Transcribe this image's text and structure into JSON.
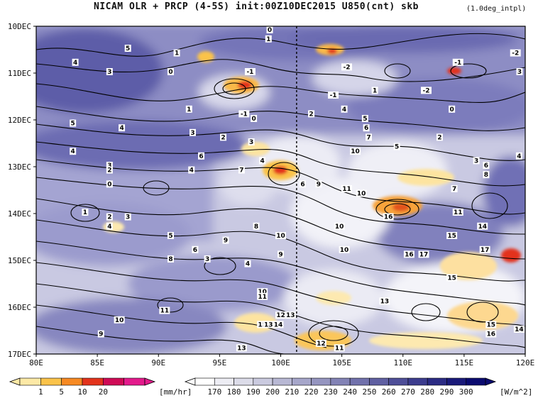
{
  "title": {
    "main": "NICAM  OLR + PRCP (4-5S) init:00Z10DEC2015 U850(cnt) skb",
    "note": "(1.0deg_intpl)"
  },
  "chart_data": {
    "type": "heatmap",
    "title": "NICAM  OLR + PRCP (4-5S) init:00Z10DEC2015 U850(cnt) skb",
    "x_ticks": [
      "80E",
      "85E",
      "90E",
      "95E",
      "100E",
      "105E",
      "110E",
      "115E",
      "120E"
    ],
    "x_range": [
      80,
      120
    ],
    "y_ticks": [
      "10DEC",
      "11DEC",
      "12DEC",
      "13DEC",
      "14DEC",
      "15DEC",
      "16DEC",
      "17DEC"
    ],
    "y_range_days": [
      10,
      17
    ],
    "reference_line_lon": 101.3,
    "contour_variable": "U850",
    "contour_labels": [
      {
        "text": "0",
        "lon": 99.1,
        "day": 10.1
      },
      {
        "text": "1",
        "lon": 99.0,
        "day": 10.3
      },
      {
        "text": "5",
        "lon": 87.5,
        "day": 10.5
      },
      {
        "text": "4",
        "lon": 83.2,
        "day": 10.8
      },
      {
        "text": "3",
        "lon": 86.0,
        "day": 11.0
      },
      {
        "text": "1",
        "lon": 91.5,
        "day": 10.6
      },
      {
        "text": "0",
        "lon": 91.0,
        "day": 11.0
      },
      {
        "text": "-1",
        "lon": 97.5,
        "day": 11.0
      },
      {
        "text": "-2",
        "lon": 105.4,
        "day": 10.9
      },
      {
        "text": "-1",
        "lon": 114.5,
        "day": 10.8
      },
      {
        "text": "-2",
        "lon": 119.2,
        "day": 10.6
      },
      {
        "text": "3",
        "lon": 120.0,
        "day": 11.0
      },
      {
        "text": "-2",
        "lon": 111.9,
        "day": 11.4
      },
      {
        "text": "-1",
        "lon": 104.3,
        "day": 11.5
      },
      {
        "text": "1",
        "lon": 107.7,
        "day": 11.4
      },
      {
        "text": "5",
        "lon": 83.0,
        "day": 12.1
      },
      {
        "text": "4",
        "lon": 87.0,
        "day": 12.2
      },
      {
        "text": "1",
        "lon": 92.5,
        "day": 11.8
      },
      {
        "text": "-1",
        "lon": 97.0,
        "day": 11.9
      },
      {
        "text": "0",
        "lon": 97.8,
        "day": 12.0
      },
      {
        "text": "2",
        "lon": 102.5,
        "day": 11.9
      },
      {
        "text": "4",
        "lon": 105.2,
        "day": 11.8
      },
      {
        "text": "5",
        "lon": 106.9,
        "day": 12.0
      },
      {
        "text": "6",
        "lon": 107.0,
        "day": 12.2
      },
      {
        "text": "0",
        "lon": 114.0,
        "day": 11.8
      },
      {
        "text": "2",
        "lon": 113.0,
        "day": 12.4
      },
      {
        "text": "3",
        "lon": 92.8,
        "day": 12.3
      },
      {
        "text": "2",
        "lon": 95.3,
        "day": 12.4
      },
      {
        "text": "3",
        "lon": 97.6,
        "day": 12.5
      },
      {
        "text": "7",
        "lon": 107.2,
        "day": 12.4
      },
      {
        "text": "5",
        "lon": 109.5,
        "day": 12.6
      },
      {
        "text": "4",
        "lon": 83.0,
        "day": 12.7
      },
      {
        "text": "6",
        "lon": 93.5,
        "day": 12.8
      },
      {
        "text": "4",
        "lon": 98.5,
        "day": 12.9
      },
      {
        "text": "10",
        "lon": 106.1,
        "day": 12.7
      },
      {
        "text": "3",
        "lon": 116.0,
        "day": 12.9
      },
      {
        "text": "4",
        "lon": 119.5,
        "day": 12.8
      },
      {
        "text": "3",
        "lon": 86.0,
        "day": 13.0
      },
      {
        "text": "2",
        "lon": 86.0,
        "day": 13.1
      },
      {
        "text": "0",
        "lon": 86.0,
        "day": 13.4
      },
      {
        "text": "4",
        "lon": 92.7,
        "day": 13.1
      },
      {
        "text": "7",
        "lon": 96.8,
        "day": 13.1
      },
      {
        "text": "6",
        "lon": 101.8,
        "day": 13.4
      },
      {
        "text": "9",
        "lon": 103.1,
        "day": 13.4
      },
      {
        "text": "11",
        "lon": 105.4,
        "day": 13.5
      },
      {
        "text": "10",
        "lon": 106.6,
        "day": 13.6
      },
      {
        "text": "6",
        "lon": 116.8,
        "day": 13.0
      },
      {
        "text": "8",
        "lon": 116.8,
        "day": 13.2
      },
      {
        "text": "7",
        "lon": 114.2,
        "day": 13.5
      },
      {
        "text": "1",
        "lon": 84.0,
        "day": 14.0
      },
      {
        "text": "2",
        "lon": 86.0,
        "day": 14.1
      },
      {
        "text": "3",
        "lon": 87.5,
        "day": 14.1
      },
      {
        "text": "4",
        "lon": 86.0,
        "day": 14.3
      },
      {
        "text": "16",
        "lon": 108.8,
        "day": 14.1
      },
      {
        "text": "11",
        "lon": 114.5,
        "day": 14.0
      },
      {
        "text": "8",
        "lon": 98.0,
        "day": 14.3
      },
      {
        "text": "5",
        "lon": 91.0,
        "day": 14.5
      },
      {
        "text": "10",
        "lon": 100.0,
        "day": 14.5
      },
      {
        "text": "10",
        "lon": 104.8,
        "day": 14.3
      },
      {
        "text": "15",
        "lon": 114.0,
        "day": 14.5
      },
      {
        "text": "14",
        "lon": 116.5,
        "day": 14.3
      },
      {
        "text": "9",
        "lon": 95.5,
        "day": 14.6
      },
      {
        "text": "6",
        "lon": 93.0,
        "day": 14.8
      },
      {
        "text": "9",
        "lon": 100.0,
        "day": 14.9
      },
      {
        "text": "10",
        "lon": 105.2,
        "day": 14.8
      },
      {
        "text": "16",
        "lon": 110.5,
        "day": 14.9
      },
      {
        "text": "17",
        "lon": 111.7,
        "day": 14.9
      },
      {
        "text": "17",
        "lon": 116.7,
        "day": 14.8
      },
      {
        "text": "8",
        "lon": 91.0,
        "day": 15.0
      },
      {
        "text": "3",
        "lon": 94.0,
        "day": 15.0
      },
      {
        "text": "4",
        "lon": 97.3,
        "day": 15.1
      },
      {
        "text": "15",
        "lon": 114.0,
        "day": 15.4
      },
      {
        "text": "10",
        "lon": 98.5,
        "day": 15.7
      },
      {
        "text": "11",
        "lon": 98.5,
        "day": 15.8
      },
      {
        "text": "13",
        "lon": 108.5,
        "day": 15.9
      },
      {
        "text": "11",
        "lon": 90.5,
        "day": 16.1
      },
      {
        "text": "12",
        "lon": 100.0,
        "day": 16.2
      },
      {
        "text": "13",
        "lon": 100.8,
        "day": 16.2
      },
      {
        "text": "15",
        "lon": 98.5,
        "day": 16.4
      },
      {
        "text": "13",
        "lon": 99.0,
        "day": 16.4
      },
      {
        "text": "14",
        "lon": 99.8,
        "day": 16.4
      },
      {
        "text": "10",
        "lon": 86.8,
        "day": 16.3
      },
      {
        "text": "9",
        "lon": 85.3,
        "day": 16.6
      },
      {
        "text": "15",
        "lon": 117.2,
        "day": 16.4
      },
      {
        "text": "16",
        "lon": 117.2,
        "day": 16.6
      },
      {
        "text": "14",
        "lon": 119.5,
        "day": 16.5
      },
      {
        "text": "12",
        "lon": 103.3,
        "day": 16.8
      },
      {
        "text": "13",
        "lon": 96.8,
        "day": 16.9
      },
      {
        "text": "11",
        "lon": 104.8,
        "day": 16.9
      }
    ],
    "colorbars": [
      {
        "name": "PRCP",
        "unit": "[mm/hr]",
        "tick_labels": [
          "1",
          "5",
          "10",
          "20"
        ],
        "colors": [
          "#fde9a6",
          "#fbc34a",
          "#f78a23",
          "#e3331c",
          "#cf0a56",
          "#e31a8c"
        ]
      },
      {
        "name": "OLR",
        "unit": "[W/m^2]",
        "tick_labels": [
          "170",
          "180",
          "190",
          "200",
          "210",
          "220",
          "230",
          "240",
          "250",
          "260",
          "270",
          "280",
          "290",
          "300"
        ],
        "colors": [
          "#ffffff",
          "#ededf4",
          "#dcdce9",
          "#cacadf",
          "#b8b8d4",
          "#a6a6ca",
          "#9595c0",
          "#8383b6",
          "#7171ac",
          "#6060a2",
          "#4e4e98",
          "#3c3c8e",
          "#2b2b84",
          "#1a1a7a",
          "#0b0b70"
        ]
      }
    ]
  }
}
